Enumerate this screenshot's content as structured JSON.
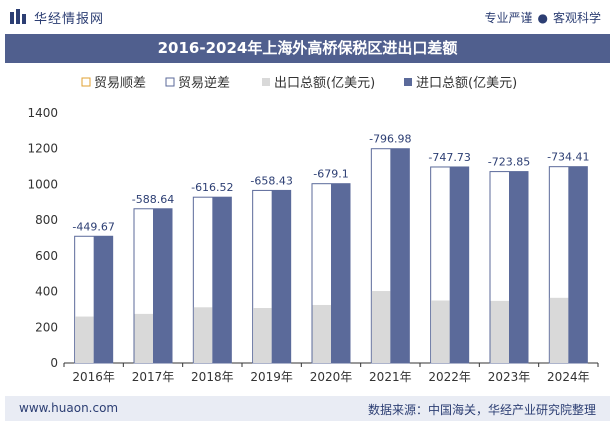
{
  "header": {
    "logo_text": "华经情报网",
    "tag_left": "专业严谨",
    "tag_right": "客观科学"
  },
  "chart_title": "2016-2024年上海外高桥保税区进出口差额",
  "legend": [
    "贸易顺差",
    "贸易逆差",
    "出口总额(亿美元)",
    "进口总额(亿美元)"
  ],
  "footer": {
    "website": "www.huaon.com",
    "source": "数据来源：中国海关，华经产业研究院整理"
  },
  "colors": {
    "export_bar": "#d9d9d9",
    "import_bar": "#5b6a9a",
    "balance_outline": "#5b6a9a",
    "surplus_outline": "#e0a030",
    "title_bg": "#505f8e"
  },
  "chart_data": {
    "type": "bar",
    "categories": [
      "2016年",
      "2017年",
      "2018年",
      "2019年",
      "2020年",
      "2021年",
      "2022年",
      "2023年",
      "2024年"
    ],
    "series": [
      {
        "name": "出口总额(亿美元)",
        "values": [
          260,
          275,
          312,
          308,
          325,
          403,
          350,
          348,
          365
        ]
      },
      {
        "name": "进口总额(亿美元)",
        "values": [
          709.67,
          863.64,
          928.52,
          966.43,
          1004.1,
          1199.98,
          1097.73,
          1071.85,
          1099.41
        ]
      },
      {
        "name": "贸易逆差",
        "values": [
          -449.67,
          -588.64,
          -616.52,
          -658.43,
          -679.1,
          -796.98,
          -747.73,
          -723.85,
          -734.41
        ]
      }
    ],
    "data_labels": [
      "-449.67",
      "-588.64",
      "-616.52",
      "-658.43",
      "-679.1",
      "-796.98",
      "-747.73",
      "-723.85",
      "-734.41"
    ],
    "yticks": [
      "0",
      "200",
      "400",
      "600",
      "800",
      "1000",
      "1200",
      "1400"
    ],
    "ylim": [
      0,
      1400
    ],
    "grid": false
  }
}
